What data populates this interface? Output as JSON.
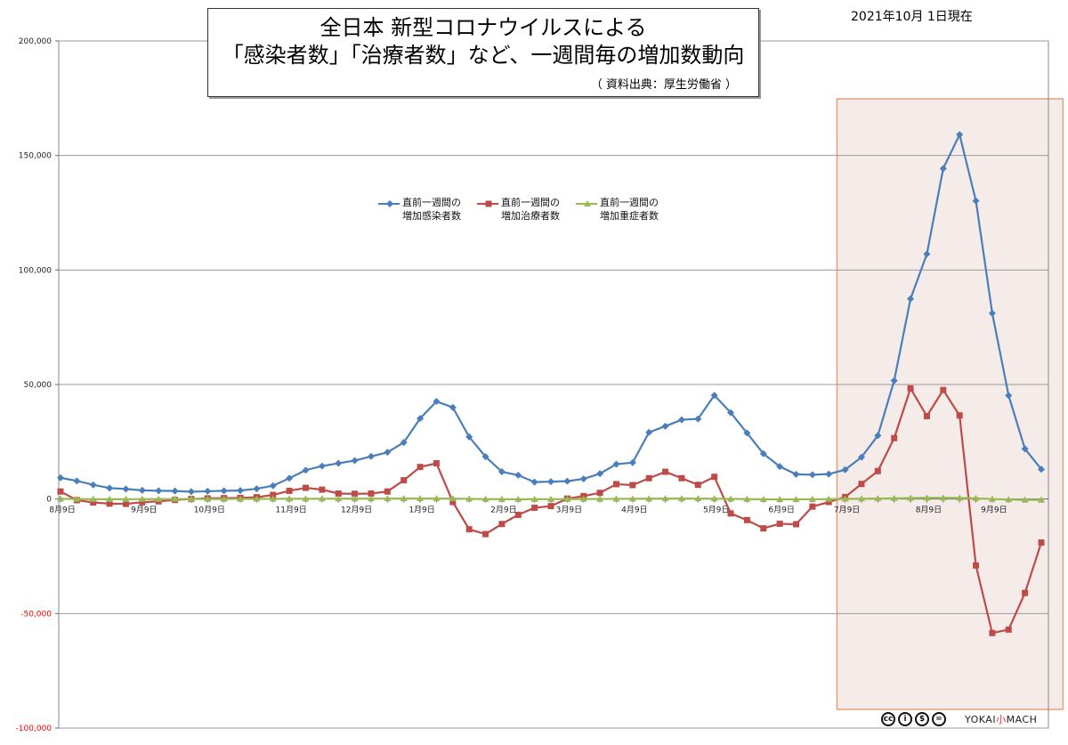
{
  "title_line1": "全日本 新型コロナウイルスによる",
  "title_line2": "「感染者数」「治療者数」など、一週間毎の増加数動向",
  "source": "（ 資料出典：厚生労働省 ）",
  "date_label": "2021年10月 1日現在",
  "credit": {
    "icons": [
      {
        "name": "cc-icon",
        "glyph": "cc"
      },
      {
        "name": "by-icon",
        "glyph": "i"
      },
      {
        "name": "nc-icon",
        "glyph": "$"
      },
      {
        "name": "nd-icon",
        "glyph": "="
      }
    ],
    "brand_left": "YOKAI",
    "brand_mid": "小",
    "brand_right": "MACH"
  },
  "colors": {
    "infected": "#4a7ebb",
    "treated": "#be4b48",
    "severe": "#98b954",
    "highlight_fill": "#f5ecea",
    "highlight_border": "#e0a27a",
    "negative_tick": "#ff0000"
  },
  "chart_data": {
    "type": "line",
    "title": "全日本 新型コロナウイルスによる「感染者数」「治療者数」など、一週間毎の増加数動向",
    "ylim": [
      -100000,
      200000
    ],
    "y_ticks": [
      200000,
      150000,
      100000,
      50000,
      0,
      -50000,
      -100000
    ],
    "y_tick_labels": [
      "200,000",
      "150,000",
      "100,000",
      "50,000",
      "0",
      "-50,000",
      "-100,000"
    ],
    "x_tick_labels": [
      {
        "index": 0,
        "label": "8月9日"
      },
      {
        "index": 5,
        "label": "9月9日"
      },
      {
        "index": 9,
        "label": "10月9日"
      },
      {
        "index": 14,
        "label": "11月9日"
      },
      {
        "index": 18,
        "label": "12月9日"
      },
      {
        "index": 22,
        "label": "1月9日"
      },
      {
        "index": 27,
        "label": "2月9日"
      },
      {
        "index": 31,
        "label": "3月9日"
      },
      {
        "index": 35,
        "label": "4月9日"
      },
      {
        "index": 40,
        "label": "5月9日"
      },
      {
        "index": 44,
        "label": "6月9日"
      },
      {
        "index": 48,
        "label": "7月9日"
      },
      {
        "index": 53,
        "label": "8月9日"
      },
      {
        "index": 57,
        "label": "9月9日"
      }
    ],
    "legend_position": "top-center",
    "grid": "horizontal",
    "highlight_range": [
      47.5,
      61
    ],
    "series": [
      {
        "name": "直前一週間の\n増加感染者数",
        "color": "#4a7ebb",
        "marker": "diamond",
        "values": [
          9300,
          7900,
          6200,
          4800,
          4400,
          3800,
          3600,
          3500,
          3200,
          3400,
          3600,
          3700,
          4500,
          5800,
          9100,
          12600,
          14400,
          15600,
          16800,
          18600,
          20400,
          24700,
          35200,
          42600,
          40000,
          27100,
          18500,
          11900,
          10400,
          7400,
          7600,
          7800,
          8800,
          11100,
          15200,
          15900,
          29100,
          31800,
          34600,
          35000,
          45300,
          37700,
          28800,
          19800,
          14200,
          10800,
          10600,
          10900,
          12800,
          18300,
          27700,
          51700,
          87400,
          107000,
          144300,
          159100,
          130200,
          81100,
          45200,
          21900,
          13000
        ]
      },
      {
        "name": "直前一週間の\n増加治療者数",
        "color": "#be4b48",
        "marker": "square",
        "values": [
          3300,
          -500,
          -1500,
          -2000,
          -2100,
          -1400,
          -1000,
          -400,
          0,
          300,
          400,
          500,
          800,
          1800,
          3600,
          4900,
          4100,
          2400,
          2300,
          2400,
          3300,
          8200,
          14000,
          15600,
          -1300,
          -13200,
          -15300,
          -10900,
          -6900,
          -3800,
          -3100,
          200,
          1300,
          2700,
          6500,
          6100,
          9100,
          11900,
          9100,
          6200,
          9700,
          -6300,
          -9200,
          -12800,
          -10800,
          -11000,
          -3300,
          -1300,
          900,
          6600,
          12200,
          26600,
          48300,
          36200,
          47600,
          36500,
          -29000,
          -58500,
          -57000,
          -41000,
          -19000
        ]
      },
      {
        "name": "直前一週間の\n増加重症者数",
        "color": "#98b954",
        "marker": "triangle",
        "values": [
          100,
          0,
          -50,
          -80,
          -60,
          -40,
          -20,
          0,
          10,
          20,
          30,
          40,
          60,
          80,
          100,
          120,
          140,
          160,
          170,
          180,
          190,
          210,
          230,
          220,
          150,
          60,
          -20,
          -80,
          -100,
          -90,
          -60,
          -30,
          10,
          40,
          80,
          110,
          160,
          200,
          210,
          190,
          160,
          60,
          -40,
          -120,
          -150,
          -130,
          -100,
          -20,
          60,
          120,
          220,
          300,
          420,
          500,
          520,
          470,
          300,
          0,
          -250,
          -380,
          -400
        ]
      }
    ]
  }
}
